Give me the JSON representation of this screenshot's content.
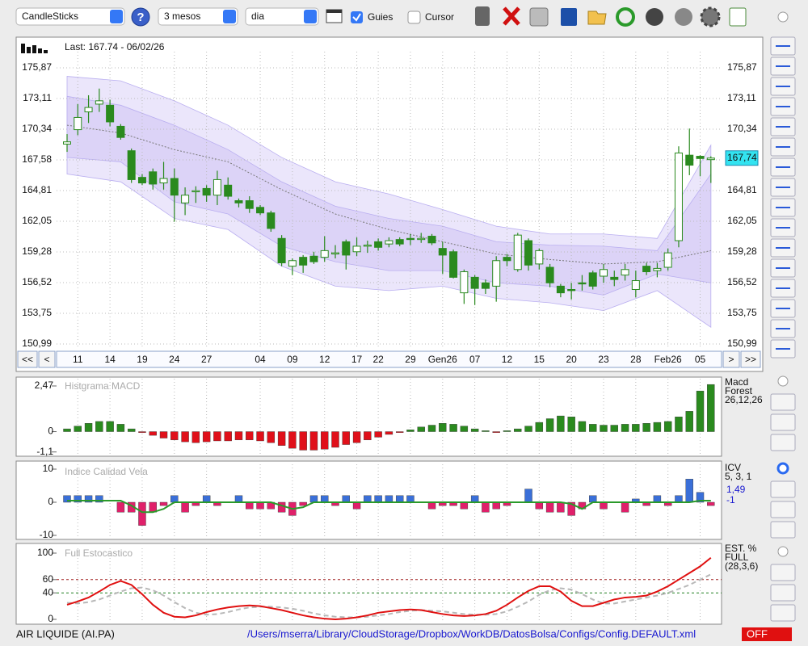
{
  "toolbar": {
    "chart_style": "CandleSticks",
    "period": "3 mesos",
    "interval": "dia",
    "guides_label": "Guies",
    "guides_checked": true,
    "cursor_label": "Cursor",
    "cursor_checked": false
  },
  "navigation": [
    "<<",
    "<",
    ">",
    ">>"
  ],
  "footer": {
    "symbol": "AIR LIQUIDE (AI.PA)",
    "config_path": "/Users/mserra/Library/CloudStorage/Dropbox/WorkDB/DatosBolsa/Configs/Config.DEFAULT.xml",
    "status": "OFF"
  },
  "chart_data": [
    {
      "type": "candlestick",
      "annotation": "Last: 167.74 - 06/02/26",
      "last": {
        "value": 167.74,
        "label": "167,74"
      },
      "categories": [
        null,
        "11",
        null,
        null,
        "14",
        null,
        null,
        "19",
        null,
        null,
        "24",
        null,
        null,
        "27",
        null,
        null,
        null,
        null,
        "04",
        null,
        null,
        "09",
        null,
        null,
        "12",
        null,
        null,
        "17",
        null,
        "22",
        null,
        null,
        "29",
        null,
        null,
        "Gen26",
        null,
        null,
        "07",
        null,
        null,
        "12",
        null,
        null,
        "15",
        null,
        null,
        "20",
        null,
        null,
        "23",
        null,
        null,
        "28",
        null,
        null,
        "Feb26",
        null,
        null,
        "05",
        null
      ],
      "open": [
        169.0,
        170.3,
        171.9,
        172.6,
        172.5,
        170.6,
        168.4,
        166.0,
        166.5,
        165.5,
        165.9,
        163.7,
        164.7,
        165.0,
        164.4,
        165.3,
        163.9,
        163.9,
        163.3,
        162.8,
        160.5,
        158.0,
        158.8,
        158.9,
        158.8,
        159.1,
        160.2,
        159.3,
        159.8,
        160.2,
        160.0,
        160.4,
        160.5,
        160.4,
        160.7,
        159.6,
        159.3,
        155.6,
        157.0,
        156.5,
        156.2,
        158.8,
        157.7,
        160.3,
        158.2,
        157.9,
        156.2,
        155.9,
        156.5,
        157.4,
        157.1,
        157.0,
        157.2,
        155.9,
        158.0,
        157.6,
        157.9,
        160.3,
        168.0,
        167.9,
        167.6
      ],
      "high": [
        169.9,
        172.6,
        173.4,
        174.0,
        173.0,
        170.8,
        168.6,
        166.3,
        166.8,
        167.4,
        166.8,
        165.1,
        165.2,
        165.3,
        166.6,
        166.0,
        164.1,
        164.3,
        163.5,
        163.0,
        160.8,
        158.7,
        159.0,
        159.3,
        160.7,
        159.9,
        160.4,
        160.6,
        160.3,
        160.5,
        160.6,
        160.6,
        160.9,
        161.0,
        160.9,
        160.2,
        159.5,
        157.7,
        157.2,
        156.8,
        158.9,
        159.1,
        161.0,
        160.5,
        159.6,
        158.2,
        156.4,
        156.5,
        157.2,
        157.6,
        158.2,
        157.6,
        158.2,
        157.6,
        158.3,
        158.3,
        159.6,
        168.8,
        170.4,
        168.0,
        167.9
      ],
      "low": [
        168.3,
        169.8,
        170.9,
        171.9,
        170.6,
        169.4,
        165.5,
        165.3,
        164.9,
        164.9,
        162.0,
        162.6,
        163.7,
        163.8,
        163.5,
        164.0,
        163.3,
        162.8,
        162.6,
        161.1,
        158.0,
        157.2,
        157.4,
        158.2,
        158.4,
        158.7,
        157.7,
        158.9,
        159.2,
        159.4,
        159.7,
        159.8,
        159.9,
        160.1,
        159.9,
        157.3,
        156.9,
        154.6,
        154.5,
        155.5,
        154.8,
        158.0,
        157.5,
        157.6,
        157.7,
        156.1,
        155.2,
        155.0,
        155.8,
        155.9,
        156.5,
        156.2,
        156.7,
        155.2,
        157.2,
        157.0,
        157.6,
        159.7,
        166.2,
        166.1,
        165.5
      ],
      "close": [
        169.2,
        171.4,
        172.3,
        172.9,
        171.0,
        169.6,
        165.8,
        165.5,
        165.4,
        165.9,
        164.4,
        164.4,
        164.8,
        164.4,
        165.8,
        164.3,
        163.7,
        163.2,
        162.8,
        161.4,
        158.3,
        158.5,
        158.1,
        158.4,
        159.4,
        159.2,
        159.0,
        159.8,
        159.9,
        159.7,
        160.3,
        160.0,
        160.4,
        160.5,
        160.1,
        159.0,
        157.0,
        157.5,
        156.0,
        156.0,
        158.5,
        158.5,
        160.8,
        158.1,
        159.4,
        156.5,
        155.6,
        155.8,
        156.4,
        156.2,
        157.7,
        156.8,
        157.7,
        156.7,
        157.5,
        157.8,
        159.2,
        168.2,
        167.1,
        167.7,
        167.74
      ],
      "up_color": "#ffffff",
      "down_color": "#2a8a1e",
      "outline_color": "#2a8a1e",
      "bands": {
        "x": [
          0,
          5,
          10,
          15,
          20,
          25,
          30,
          35,
          40,
          45,
          50,
          55,
          60
        ],
        "outer_upper": [
          175.1,
          174.7,
          172.9,
          170.7,
          167.8,
          165.6,
          164.5,
          163.1,
          161.6,
          160.9,
          160.9,
          160.5,
          168.9
        ],
        "outer_lower": [
          166.3,
          165.6,
          162.3,
          161.3,
          158.0,
          156.2,
          155.8,
          156.2,
          155.1,
          154.7,
          154.0,
          155.8,
          152.5
        ],
        "inner_upper": [
          173.3,
          172.5,
          170.7,
          168.5,
          165.6,
          163.4,
          162.3,
          161.6,
          160.2,
          159.9,
          159.8,
          159.4,
          166.3
        ],
        "inner_lower": [
          167.8,
          167.4,
          163.8,
          162.7,
          159.8,
          158.4,
          157.6,
          157.6,
          156.5,
          156.2,
          155.4,
          157.3,
          156.5
        ],
        "average": [
          170.7,
          170.0,
          168.5,
          167.4,
          164.9,
          162.7,
          161.3,
          160.2,
          159.1,
          158.6,
          158.2,
          158.4,
          159.4
        ],
        "outer_color": "#ebe6fb",
        "inner_color": "#dcd3f7",
        "average_color": "#777777"
      },
      "ylim": [
        150.99,
        175.87
      ],
      "yticks": [
        {
          "value": 150.99,
          "label": "150,99"
        },
        {
          "value": 153.75,
          "label": "153,75"
        },
        {
          "value": 156.52,
          "label": "156,52"
        },
        {
          "value": 159.28,
          "label": "159,28"
        },
        {
          "value": 162.05,
          "label": "162,05"
        },
        {
          "value": 164.81,
          "label": "164,81"
        },
        {
          "value": 167.58,
          "label": "167,58"
        },
        {
          "value": 170.34,
          "label": "170,34"
        },
        {
          "value": 173.11,
          "label": "173,11"
        },
        {
          "value": 175.87,
          "label": "175,87"
        }
      ],
      "grid": true
    },
    {
      "type": "bar",
      "title": "Histgrama MACD",
      "legend": [
        "Macd",
        "Forest",
        "26,12,26"
      ],
      "values": [
        0.15,
        0.3,
        0.45,
        0.55,
        0.55,
        0.4,
        0.15,
        -0.05,
        -0.2,
        -0.35,
        -0.45,
        -0.55,
        -0.6,
        -0.55,
        -0.5,
        -0.5,
        -0.45,
        -0.45,
        -0.5,
        -0.6,
        -0.75,
        -0.9,
        -1.0,
        -1.0,
        -0.95,
        -0.85,
        -0.7,
        -0.6,
        -0.45,
        -0.3,
        -0.15,
        -0.05,
        0.1,
        0.25,
        0.35,
        0.45,
        0.4,
        0.3,
        0.15,
        0.05,
        -0.05,
        0.05,
        0.15,
        0.3,
        0.5,
        0.7,
        0.85,
        0.8,
        0.55,
        0.4,
        0.35,
        0.35,
        0.4,
        0.4,
        0.45,
        0.5,
        0.55,
        0.8,
        1.1,
        2.2,
        2.55
      ],
      "color": "#2a8a1e",
      "negative_color": "#e0101a",
      "ylim": [
        -1.2,
        2.6
      ],
      "yticks": [
        {
          "value": 2.47,
          "label": "2,47"
        },
        0,
        {
          "value": -1.1,
          "label": "-1,1"
        }
      ]
    },
    {
      "type": "bar",
      "title": "Indice Calidad Vela",
      "legend": [
        "ICV",
        "5, 3, 1"
      ],
      "readouts": [
        "1,49",
        "-1"
      ],
      "values": [
        2,
        2,
        2,
        2,
        0,
        -3,
        -3,
        -7,
        -3,
        -1,
        2,
        -3,
        -1,
        2,
        -1,
        0,
        2,
        -2,
        -2,
        -2,
        -3,
        -4,
        -1,
        2,
        2,
        -1,
        2,
        -2,
        2,
        2,
        2,
        2,
        2,
        0,
        -2,
        -1,
        -1,
        -2,
        2,
        -3,
        -2,
        -1,
        0,
        4,
        -2,
        -3,
        -3,
        -4,
        -2,
        2,
        -2,
        0,
        -3,
        1,
        -1,
        2,
        -1,
        2,
        7,
        3,
        -1
      ],
      "line": [
        0.5,
        0.5,
        0.5,
        0.5,
        0.5,
        0.5,
        -1,
        -3,
        -3,
        -2,
        0,
        0,
        0,
        0,
        0,
        0,
        0,
        0,
        0,
        0,
        -1,
        -2,
        -1.5,
        0,
        0,
        0,
        0,
        0,
        0,
        0,
        0,
        0,
        0,
        0,
        0,
        0,
        0,
        0,
        0,
        0,
        0,
        0,
        0,
        0,
        0,
        0,
        0,
        -0.5,
        -2,
        0,
        0,
        0,
        0,
        0,
        0,
        0,
        0,
        0,
        0,
        0.5,
        0.5
      ],
      "color": "#3a6fd8",
      "negative_color": "#e0206a",
      "line_color": "#2a9a2a",
      "ylim": [
        -10,
        10
      ],
      "yticks": [
        10,
        0,
        -10
      ]
    },
    {
      "type": "line",
      "title": "Full Estocastico",
      "legend": [
        "EST. %",
        "FULL",
        "(28,3,6)"
      ],
      "series": [
        {
          "color": "#e01010",
          "dashed": false,
          "values": [
            22,
            27,
            33,
            42,
            52,
            58,
            52,
            38,
            22,
            10,
            4,
            3,
            6,
            11,
            15,
            18,
            20,
            21,
            20,
            17,
            14,
            10,
            6,
            3,
            1,
            0,
            1,
            3,
            6,
            10,
            12,
            14,
            15,
            14,
            11,
            8,
            6,
            5,
            6,
            8,
            13,
            22,
            33,
            43,
            50,
            50,
            42,
            28,
            20,
            20,
            25,
            30,
            33,
            34,
            36,
            42,
            50,
            60,
            70,
            80,
            93
          ]
        },
        {
          "color": "#b8b8b8",
          "dashed": true,
          "values": [
            25,
            24,
            26,
            30,
            36,
            42,
            47,
            48,
            44,
            36,
            26,
            17,
            10,
            7,
            8,
            11,
            15,
            18,
            19,
            19,
            18,
            16,
            13,
            9,
            6,
            4,
            3,
            3,
            4,
            6,
            8,
            11,
            13,
            14,
            13,
            12,
            10,
            8,
            7,
            7,
            8,
            12,
            19,
            27,
            37,
            44,
            47,
            45,
            38,
            30,
            24,
            24,
            27,
            30,
            33,
            36,
            40,
            46,
            52,
            60,
            68
          ]
        }
      ],
      "levels": [
        {
          "value": 60,
          "color": "#a02020"
        },
        {
          "value": 40,
          "color": "#208020"
        }
      ],
      "ylim": [
        0,
        100
      ],
      "yticks": [
        100,
        60,
        40,
        0
      ]
    }
  ]
}
